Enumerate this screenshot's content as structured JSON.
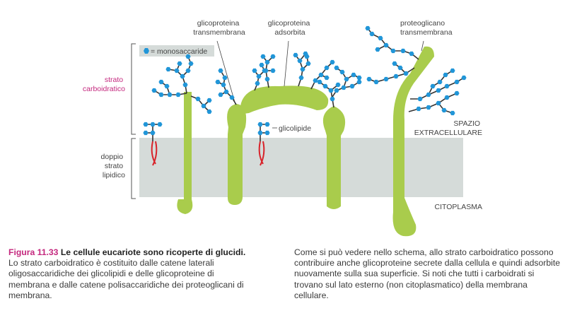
{
  "diagram": {
    "labels": {
      "glyco_trans": [
        "glicoproteina",
        "transmembrana"
      ],
      "glyco_ads": [
        "glicoproteina",
        "adsorbita"
      ],
      "proteoglycan": [
        "proteoglicano",
        "transmembrana"
      ],
      "legend": "= monosaccaride",
      "strato_carb": [
        "strato",
        "carboidratico"
      ],
      "doppio": [
        "doppio",
        "strato",
        "lipidico"
      ],
      "glicolipide": "glicolipide",
      "spazio": [
        "SPAZIO",
        "EXTRACELLULARE"
      ],
      "citoplasma": "CITOPLASMA"
    },
    "colors": {
      "protein": "#a9cc4c",
      "sugar": "#2196d8",
      "chain_link": "#333333",
      "lipid_tail": "#d8232a",
      "membrane": "#d5dbd9",
      "accent": "#c4287e"
    }
  },
  "caption": {
    "figure_number": "Figura 11.33",
    "title": "Le cellule eucariote sono ricoperte di glucidi.",
    "left_text": "Lo strato carboidratico è costituito dalle catene laterali oligosaccaridiche dei glicolipidi e delle glicoproteine di membrana e dalle catene polisaccaridiche dei proteoglicani di membrana.",
    "right_text": "Come si può vedere nello schema, allo strato carboidratico possono contribuire anche glicoproteine secrete dalla cellula e quindi adsorbite nuovamente sulla sua superficie. Si noti che tutti i carboidrati si trovano sul lato esterno (non citoplasmatico) della membrana cellulare."
  }
}
